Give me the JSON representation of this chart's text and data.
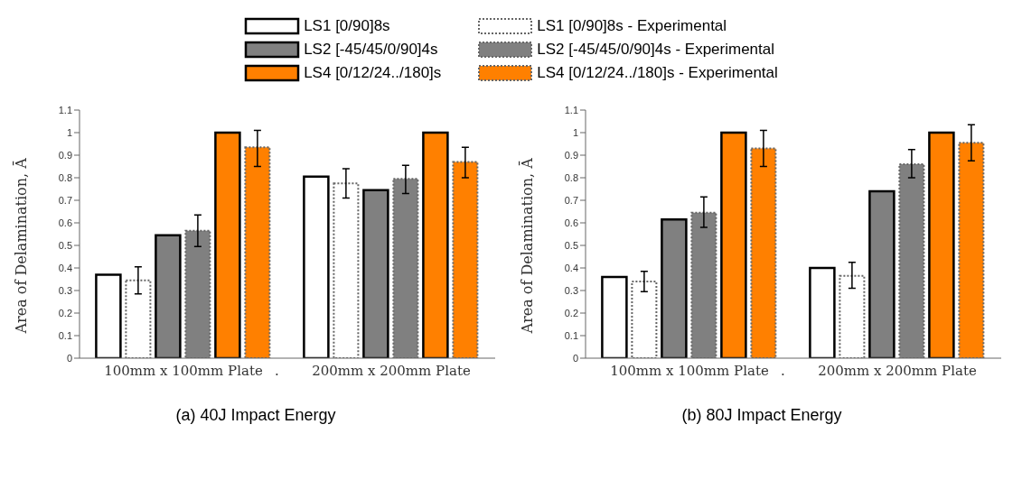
{
  "chart_data": [
    {
      "type": "bar",
      "title": "(a)  40J Impact Energy",
      "ylabel": "Area of Delamination, Ā",
      "categories": [
        "100mm x 100mm Plate",
        "200mm x 200mm Plate"
      ],
      "annotations": [
        "."
      ],
      "series": [
        {
          "name": "LS1 [0/90]8s",
          "color": "#ffffff",
          "line_style": "solid",
          "values": [
            0.37,
            0.805
          ]
        },
        {
          "name": "LS1 [0/90]8s - Experimental",
          "color": "#ffffff",
          "line_style": "dotted",
          "values": [
            0.345,
            0.775
          ],
          "errors": [
            [
              0.285,
              0.405
            ],
            [
              0.71,
              0.84
            ]
          ]
        },
        {
          "name": "LS2 [-45/45/0/90]4s",
          "color": "#808080",
          "line_style": "solid",
          "values": [
            0.545,
            0.745
          ]
        },
        {
          "name": "LS2 [-45/45/0/90]4s - Experimental",
          "color": "#808080",
          "line_style": "dotted",
          "values": [
            0.565,
            0.795
          ],
          "errors": [
            [
              0.495,
              0.635
            ],
            [
              0.73,
              0.855
            ]
          ]
        },
        {
          "name": "LS4 [0/12/24../180]s",
          "color": "#ff8000",
          "line_style": "solid",
          "values": [
            1.0,
            1.0
          ]
        },
        {
          "name": "LS4 [0/12/24../180]s - Experimental",
          "color": "#ff8000",
          "line_style": "dotted",
          "values": [
            0.935,
            0.87
          ],
          "errors": [
            [
              0.85,
              1.01
            ],
            [
              0.8,
              0.935
            ]
          ]
        }
      ],
      "ylim": [
        0,
        1.1
      ],
      "yticks": [
        0,
        0.1,
        0.2,
        0.3,
        0.4,
        0.5,
        0.6,
        0.7,
        0.8,
        0.9,
        1,
        1.1
      ],
      "grid": false,
      "legend": "top"
    },
    {
      "type": "bar",
      "title": "(b)  80J Impact Energy",
      "ylabel": "Area of Delamination, Ā",
      "categories": [
        "100mm x 100mm Plate",
        "200mm x 200mm Plate"
      ],
      "annotations": [
        "."
      ],
      "series": [
        {
          "color": "#ffffff",
          "line_style": "solid",
          "values": [
            0.36,
            0.4
          ]
        },
        {
          "color": "#ffffff",
          "line_style": "dotted",
          "values": [
            0.34,
            0.365
          ],
          "errors": [
            [
              0.295,
              0.385
            ],
            [
              0.31,
              0.425
            ]
          ]
        },
        {
          "color": "#808080",
          "line_style": "solid",
          "values": [
            0.615,
            0.74
          ]
        },
        {
          "color": "#808080",
          "line_style": "dotted",
          "values": [
            0.645,
            0.86
          ],
          "errors": [
            [
              0.58,
              0.715
            ],
            [
              0.8,
              0.925
            ]
          ]
        },
        {
          "color": "#ff8000",
          "line_style": "solid",
          "values": [
            1.0,
            1.0
          ]
        },
        {
          "color": "#ff8000",
          "line_style": "dotted",
          "values": [
            0.93,
            0.955
          ],
          "errors": [
            [
              0.85,
              1.01
            ],
            [
              0.875,
              1.035
            ]
          ]
        }
      ],
      "ylim": [
        0,
        1.1
      ],
      "yticks": [
        0,
        0.1,
        0.2,
        0.3,
        0.4,
        0.5,
        0.6,
        0.7,
        0.8,
        0.9,
        1,
        1.1
      ],
      "grid": false
    }
  ]
}
